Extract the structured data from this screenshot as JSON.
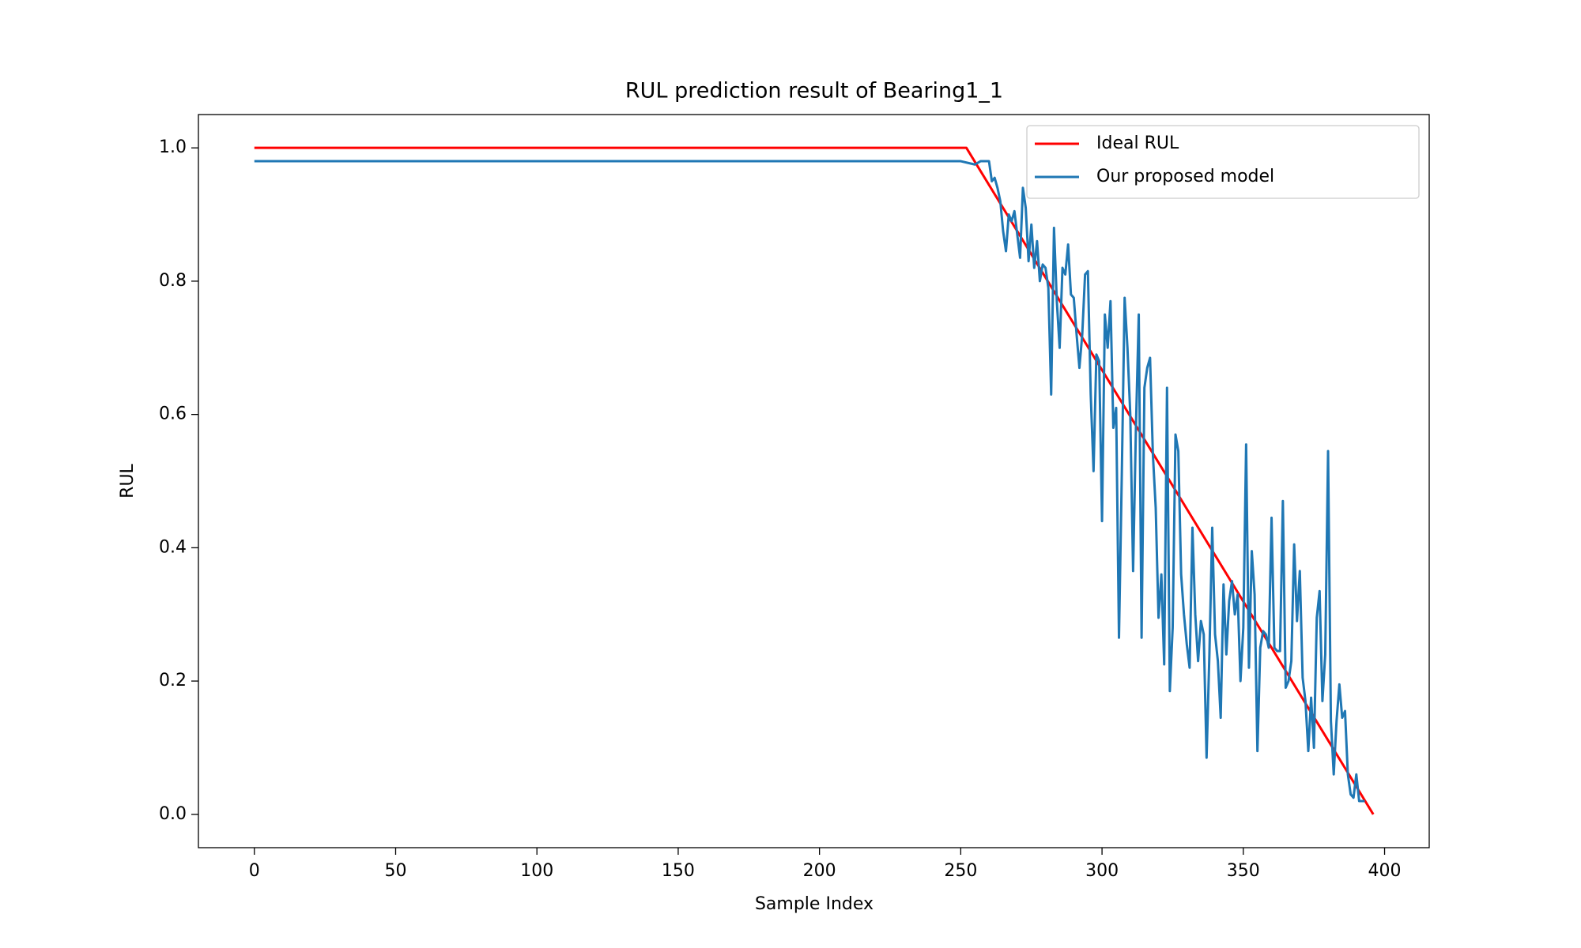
{
  "chart_data": {
    "type": "line",
    "title": "RUL prediction result of Bearing1_1",
    "xlabel": "Sample Index",
    "ylabel": "RUL",
    "xlim": [
      -19.8,
      415.8
    ],
    "ylim": [
      -0.05,
      1.05
    ],
    "xticks": [
      0,
      50,
      100,
      150,
      200,
      250,
      300,
      350,
      400
    ],
    "yticks": [
      {
        "value": 0,
        "label": "0.0"
      },
      0.2,
      0.4,
      0.6,
      0.8,
      {
        "value": 1,
        "label": "1.0"
      }
    ],
    "legend": "upper right",
    "series": [
      {
        "name": "Ideal RUL",
        "color": "#ff0000",
        "x": [
          0,
          252,
          396
        ],
        "values": [
          1,
          1,
          0
        ]
      },
      {
        "name": "Our proposed model",
        "color": "#1f77b4",
        "x": [
          0,
          100,
          200,
          250,
          255,
          257,
          259,
          260,
          261,
          262,
          263,
          264,
          265,
          266,
          267,
          268,
          269,
          270,
          271,
          272,
          273,
          274,
          275,
          276,
          277,
          278,
          279,
          280,
          281,
          282,
          283,
          284,
          285,
          286,
          287,
          288,
          289,
          290,
          291,
          292,
          293,
          294,
          295,
          296,
          297,
          298,
          299,
          300,
          301,
          302,
          303,
          304,
          305,
          306,
          307,
          308,
          309,
          310,
          311,
          312,
          313,
          314,
          315,
          316,
          317,
          318,
          319,
          320,
          321,
          322,
          323,
          324,
          325,
          326,
          327,
          328,
          329,
          330,
          331,
          332,
          333,
          334,
          335,
          336,
          337,
          338,
          339,
          340,
          341,
          342,
          343,
          344,
          345,
          346,
          347,
          348,
          349,
          350,
          351,
          352,
          353,
          354,
          355,
          356,
          357,
          358,
          359,
          360,
          361,
          362,
          363,
          364,
          365,
          366,
          367,
          368,
          369,
          370,
          371,
          372,
          373,
          374,
          375,
          376,
          377,
          378,
          379,
          380,
          381,
          382,
          383,
          384,
          385,
          386,
          387,
          388,
          389,
          390,
          391,
          392,
          393
        ],
        "values": [
          0.98,
          0.98,
          0.98,
          0.98,
          0.975,
          0.98,
          0.98,
          0.98,
          0.95,
          0.955,
          0.94,
          0.92,
          0.875,
          0.845,
          0.9,
          0.89,
          0.905,
          0.87,
          0.835,
          0.94,
          0.91,
          0.83,
          0.885,
          0.82,
          0.86,
          0.8,
          0.825,
          0.82,
          0.79,
          0.63,
          0.88,
          0.77,
          0.7,
          0.82,
          0.81,
          0.855,
          0.78,
          0.775,
          0.72,
          0.67,
          0.72,
          0.81,
          0.815,
          0.63,
          0.515,
          0.69,
          0.68,
          0.44,
          0.75,
          0.7,
          0.77,
          0.58,
          0.61,
          0.265,
          0.51,
          0.775,
          0.7,
          0.6,
          0.365,
          0.58,
          0.75,
          0.265,
          0.64,
          0.67,
          0.685,
          0.54,
          0.46,
          0.295,
          0.36,
          0.225,
          0.64,
          0.185,
          0.28,
          0.57,
          0.545,
          0.36,
          0.3,
          0.255,
          0.22,
          0.43,
          0.3,
          0.23,
          0.29,
          0.27,
          0.085,
          0.24,
          0.43,
          0.27,
          0.23,
          0.145,
          0.345,
          0.24,
          0.32,
          0.35,
          0.3,
          0.33,
          0.2,
          0.28,
          0.555,
          0.22,
          0.395,
          0.33,
          0.095,
          0.25,
          0.275,
          0.27,
          0.25,
          0.445,
          0.25,
          0.245,
          0.245,
          0.47,
          0.19,
          0.2,
          0.23,
          0.405,
          0.29,
          0.365,
          0.205,
          0.17,
          0.095,
          0.175,
          0.1,
          0.295,
          0.335,
          0.17,
          0.24,
          0.545,
          0.14,
          0.06,
          0.14,
          0.195,
          0.145,
          0.155,
          0.06,
          0.03,
          0.025,
          0.06,
          0.02,
          0.02,
          0.02
        ]
      }
    ]
  }
}
